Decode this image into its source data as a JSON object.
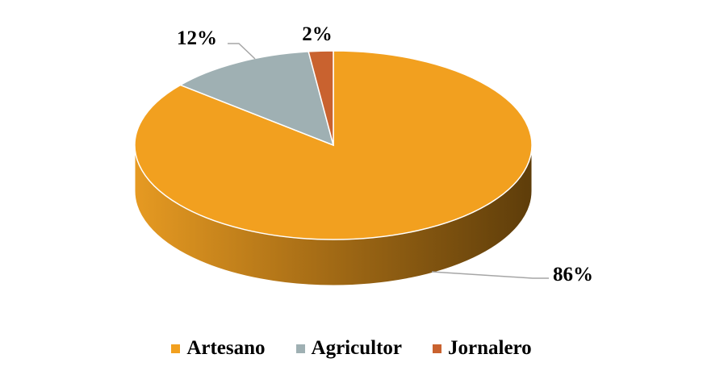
{
  "chart_data": {
    "type": "pie",
    "categories": [
      "Artesano",
      "Agricultor",
      "Jornalero"
    ],
    "values": [
      86,
      12,
      2
    ],
    "labels": [
      "86%",
      "12%",
      "2%"
    ],
    "colors": [
      "#F2A01F",
      "#9FB0B3",
      "#C9622F"
    ],
    "legend_position": "bottom",
    "style": "3d"
  }
}
